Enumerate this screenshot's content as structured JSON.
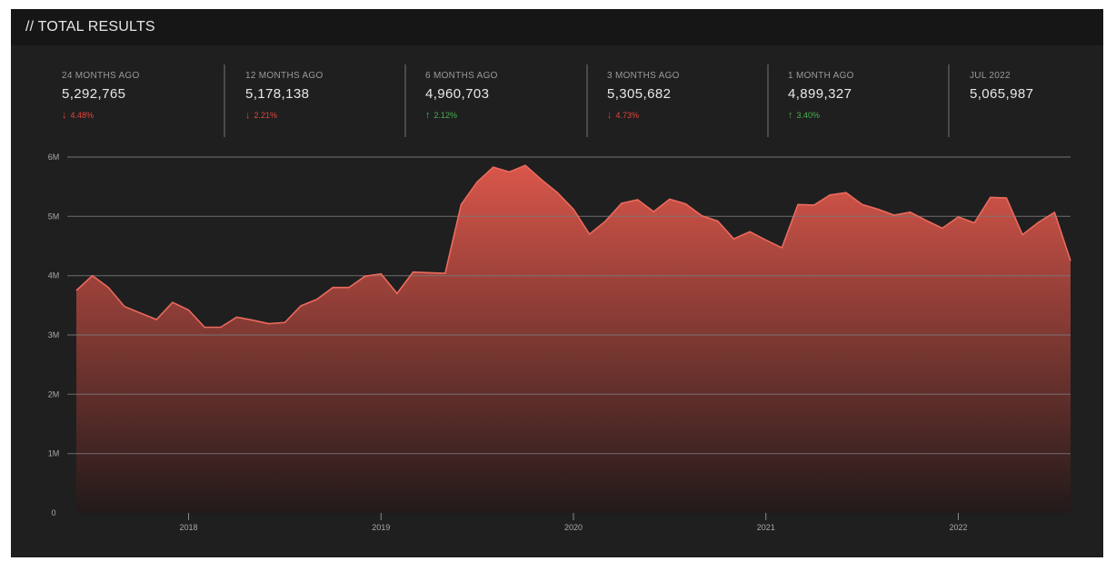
{
  "header": {
    "title": "// TOTAL RESULTS"
  },
  "stats": [
    {
      "label": "24 MONTHS AGO",
      "value": "5,292,765",
      "change": "4.48%",
      "direction": "down"
    },
    {
      "label": "12 MONTHS AGO",
      "value": "5,178,138",
      "change": "2.21%",
      "direction": "down"
    },
    {
      "label": "6 MONTHS AGO",
      "value": "4,960,703",
      "change": "2.12%",
      "direction": "up"
    },
    {
      "label": "3 MONTHS AGO",
      "value": "5,305,682",
      "change": "4.73%",
      "direction": "down"
    },
    {
      "label": "1 MONTH AGO",
      "value": "4,899,327",
      "change": "3.40%",
      "direction": "up"
    },
    {
      "label": "JUL 2022",
      "value": "5,065,987",
      "change": "",
      "direction": "none"
    }
  ],
  "colors": {
    "background": "#1f1f20",
    "header": "#161616",
    "area_top": "#d9564a",
    "area_bottom": "#221a1a",
    "line": "#ec6a5c",
    "grid": "#7a7a7a",
    "up": "#4caf50",
    "down": "#e0453a"
  },
  "chart_data": {
    "type": "area",
    "title": "",
    "xlabel": "",
    "ylabel": "",
    "ylim": [
      0,
      6000000
    ],
    "xlim": [
      "2017-06",
      "2022-08"
    ],
    "y_ticks": [
      0,
      1000000,
      2000000,
      3000000,
      4000000,
      5000000,
      6000000
    ],
    "y_tick_labels": [
      "0",
      "1M",
      "2M",
      "3M",
      "4M",
      "5M",
      "6M"
    ],
    "x_ticks": [
      {
        "date": "2018-01",
        "label": "2018"
      },
      {
        "date": "2019-01",
        "label": "2019"
      },
      {
        "date": "2020-01",
        "label": "2020"
      },
      {
        "date": "2021-01",
        "label": "2021"
      },
      {
        "date": "2022-01",
        "label": "2022"
      }
    ],
    "grid": true,
    "legend": "none",
    "series": [
      {
        "x": [
          "2017-06",
          "2017-07",
          "2017-08",
          "2017-09",
          "2017-10",
          "2017-11",
          "2017-12",
          "2018-01",
          "2018-02",
          "2018-03",
          "2018-04",
          "2018-05",
          "2018-06",
          "2018-07",
          "2018-08",
          "2018-09",
          "2018-10",
          "2018-11",
          "2018-12",
          "2019-01",
          "2019-02",
          "2019-03",
          "2019-04",
          "2019-05",
          "2019-06",
          "2019-07",
          "2019-08",
          "2019-09",
          "2019-10",
          "2019-11",
          "2019-12",
          "2020-01",
          "2020-02",
          "2020-03",
          "2020-04",
          "2020-05",
          "2020-06",
          "2020-07",
          "2020-08",
          "2020-09",
          "2020-10",
          "2020-11",
          "2020-12",
          "2021-01",
          "2021-02",
          "2021-03",
          "2021-04",
          "2021-05",
          "2021-06",
          "2021-07",
          "2021-08",
          "2021-09",
          "2021-10",
          "2021-11",
          "2021-12",
          "2022-01",
          "2022-02",
          "2022-03",
          "2022-04",
          "2022-05",
          "2022-06",
          "2022-07",
          "2022-08"
        ],
        "y": [
          3750000,
          4000000,
          3800000,
          3480000,
          3370000,
          3260000,
          3550000,
          3420000,
          3130000,
          3130000,
          3300000,
          3250000,
          3190000,
          3210000,
          3490000,
          3600000,
          3800000,
          3800000,
          3990000,
          4030000,
          3700000,
          4060000,
          4050000,
          4040000,
          5200000,
          5580000,
          5830000,
          5750000,
          5860000,
          5620000,
          5400000,
          5120000,
          4700000,
          4920000,
          5220000,
          5280000,
          5080000,
          5290000,
          5210000,
          5010000,
          4920000,
          4620000,
          4740000,
          4600000,
          4470000,
          5200000,
          5190000,
          5360000,
          5400000,
          5200000,
          5120000,
          5020000,
          5070000,
          4930000,
          4800000,
          4990000,
          4890000,
          5320000,
          5310000,
          4690000,
          4900000,
          5066000,
          4250000
        ]
      }
    ]
  }
}
